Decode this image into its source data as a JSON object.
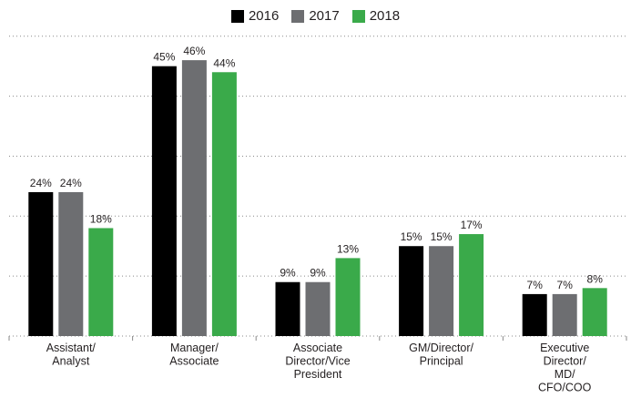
{
  "chart_data": {
    "type": "bar",
    "categories": [
      [
        "Assistant/",
        "Analyst"
      ],
      [
        "Manager/",
        "Associate"
      ],
      [
        "Associate",
        "Director/Vice",
        "President"
      ],
      [
        "GM/Director/",
        "Principal"
      ],
      [
        "Executive",
        "Director/",
        "MD/",
        "CFO/COO"
      ]
    ],
    "series": [
      {
        "name": "2016",
        "color": "#000000",
        "values": [
          24,
          45,
          9,
          15,
          7
        ]
      },
      {
        "name": "2017",
        "color": "#6d6e71",
        "values": [
          24,
          46,
          9,
          15,
          7
        ]
      },
      {
        "name": "2018",
        "color": "#3aaa4a",
        "values": [
          18,
          44,
          13,
          17,
          8
        ]
      }
    ],
    "value_suffix": "%",
    "ylim": [
      0,
      53
    ],
    "grid": true,
    "legend": "top-center",
    "title": "",
    "xlabel": "",
    "ylabel": ""
  }
}
